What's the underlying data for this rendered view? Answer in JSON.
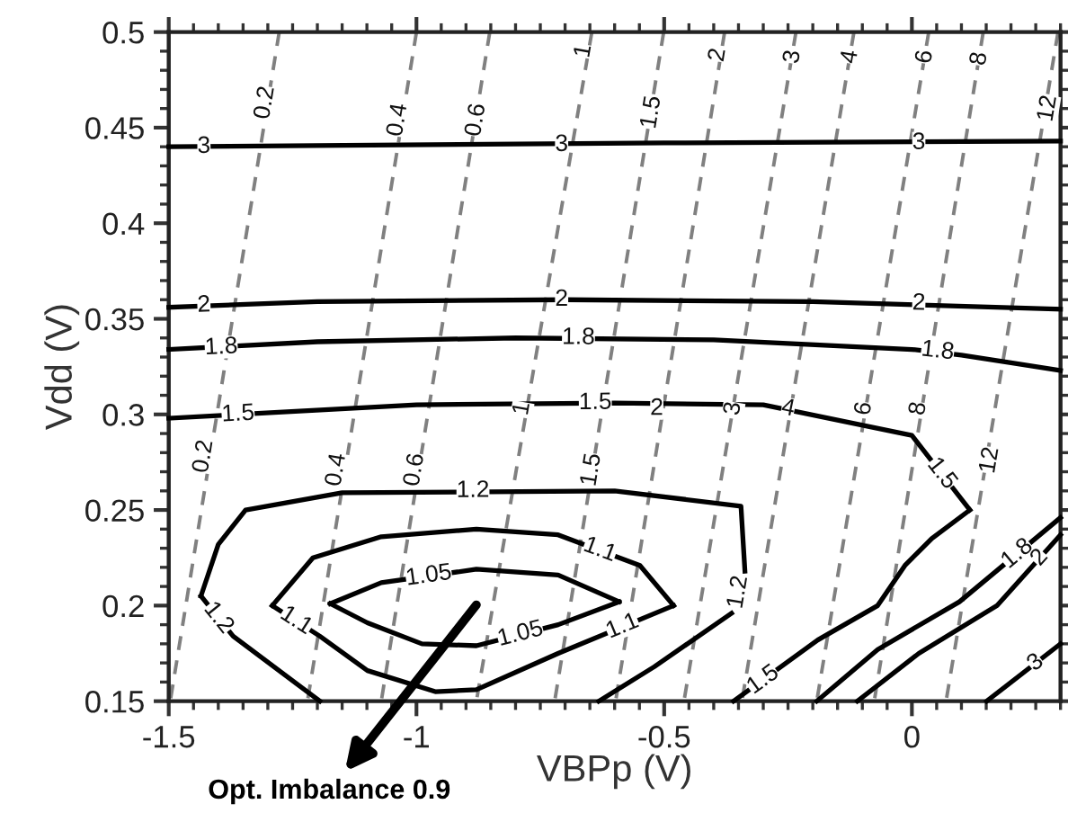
{
  "chart_data": {
    "type": "line",
    "xlabel": "VBPp (V)",
    "ylabel": "Vdd (V)",
    "xlim": [
      -1.5,
      0.3
    ],
    "ylim": [
      0.15,
      0.5
    ],
    "xticks": [
      -1.5,
      -1,
      -0.5,
      0
    ],
    "yticks": [
      0.15,
      0.2,
      0.25,
      0.3,
      0.35,
      0.4,
      0.45,
      0.5
    ],
    "grid": false,
    "legend": false,
    "marker": "none",
    "series": [
      {
        "color": "#000000",
        "line_style": "solid",
        "x": [
          -1.5,
          -0.5,
          0.3
        ],
        "values": [
          0.44,
          0.442,
          0.443
        ]
      },
      {
        "color": "#000000",
        "line_style": "solid",
        "x": [
          -1.5,
          -1.2,
          -0.7,
          -0.2,
          0.3
        ],
        "values": [
          0.356,
          0.359,
          0.36,
          0.359,
          0.355
        ]
      },
      {
        "color": "#000000",
        "line_style": "solid",
        "x": [
          -1.5,
          -1.2,
          -0.8,
          -0.4,
          0.0,
          0.1,
          0.2,
          0.3
        ],
        "values": [
          0.334,
          0.338,
          0.34,
          0.339,
          0.334,
          0.331,
          0.327,
          0.323
        ]
      },
      {
        "color": "#000000",
        "line_style": "solid",
        "x": [
          -1.5,
          -1.0,
          -0.6,
          -0.3,
          0.0,
          0.117
        ],
        "values": [
          0.298,
          0.305,
          0.306,
          0.305,
          0.289,
          0.25
        ]
      },
      {
        "color": "#000000",
        "line_style": "solid",
        "x": [
          -0.36,
          -0.19,
          -0.069,
          -0.014,
          0.04,
          0.117
        ],
        "values": [
          0.15,
          0.182,
          0.2,
          0.221,
          0.235,
          0.25
        ]
      },
      {
        "color": "#000000",
        "line_style": "solid",
        "x": [
          -1.435,
          -1.37,
          -1.195
        ],
        "values": [
          0.205,
          0.184,
          0.15
        ]
      },
      {
        "color": "#000000",
        "line_style": "solid",
        "x": [
          -1.435,
          -1.4,
          -1.345,
          -1.15,
          -0.6,
          -0.345,
          -0.337
        ],
        "values": [
          0.205,
          0.232,
          0.25,
          0.259,
          0.26,
          0.252,
          0.218
        ]
      },
      {
        "color": "#000000",
        "line_style": "solid",
        "x": [
          -0.632,
          -0.52,
          -0.364
        ],
        "values": [
          0.15,
          0.168,
          0.196
        ]
      },
      {
        "color": "#000000",
        "line_style": "solid",
        "x": [
          -1.291,
          -1.209,
          -1.071,
          -0.879,
          -0.714,
          -0.549,
          -0.481
        ],
        "values": [
          0.2,
          0.225,
          0.236,
          0.24,
          0.237,
          0.221,
          0.2
        ]
      },
      {
        "color": "#000000",
        "line_style": "solid",
        "x": [
          -1.291,
          -1.195,
          -1.099,
          -0.962,
          -0.879,
          -0.714,
          -0.481
        ],
        "values": [
          0.2,
          0.184,
          0.166,
          0.155,
          0.156,
          0.175,
          0.2
        ]
      },
      {
        "color": "#000000",
        "line_style": "solid",
        "x": [
          -1.174,
          -1.071,
          -0.879,
          -0.714,
          -0.591
        ],
        "values": [
          0.201,
          0.212,
          0.219,
          0.216,
          0.202
        ]
      },
      {
        "color": "#000000",
        "line_style": "solid",
        "x": [
          -1.174,
          -1.099,
          -0.989,
          -0.879,
          -0.714,
          -0.591
        ],
        "values": [
          0.201,
          0.191,
          0.18,
          0.179,
          0.19,
          0.202
        ]
      },
      {
        "color": "#000000",
        "line_style": "solid",
        "x": [
          -0.192,
          -0.069,
          0.096,
          0.3
        ],
        "values": [
          0.15,
          0.177,
          0.202,
          0.246
        ]
      },
      {
        "color": "#000000",
        "line_style": "solid",
        "x": [
          -0.11,
          0.014,
          0.172,
          0.3
        ],
        "values": [
          0.15,
          0.175,
          0.2,
          0.237
        ]
      },
      {
        "color": "#000000",
        "line_style": "solid",
        "x": [
          0.151,
          0.3
        ],
        "values": [
          0.15,
          0.18
        ]
      },
      {
        "color": "#808080",
        "line_style": "dashed",
        "x": [
          -1.277,
          -1.497
        ],
        "values": [
          0.5,
          0.15
        ]
      },
      {
        "color": "#808080",
        "line_style": "dashed",
        "x": [
          -1.0,
          -1.22
        ],
        "values": [
          0.5,
          0.15
        ]
      },
      {
        "color": "#808080",
        "line_style": "dashed",
        "x": [
          -0.852,
          -1.071
        ],
        "values": [
          0.5,
          0.15
        ]
      },
      {
        "color": "#808080",
        "line_style": "dashed",
        "x": [
          -0.646,
          -0.879
        ],
        "values": [
          0.5,
          0.15
        ]
      },
      {
        "color": "#808080",
        "line_style": "dashed",
        "x": [
          -0.501,
          -0.721
        ],
        "values": [
          0.5,
          0.15
        ]
      },
      {
        "color": "#808080",
        "line_style": "dashed",
        "x": [
          -0.378,
          -0.598
        ],
        "values": [
          0.5,
          0.15
        ]
      },
      {
        "color": "#808080",
        "line_style": "dashed",
        "x": [
          -0.234,
          -0.46
        ],
        "values": [
          0.5,
          0.15
        ]
      },
      {
        "color": "#808080",
        "line_style": "dashed",
        "x": [
          -0.117,
          -0.343
        ],
        "values": [
          0.5,
          0.15
        ]
      },
      {
        "color": "#808080",
        "line_style": "dashed",
        "x": [
          0.034,
          -0.192
        ],
        "values": [
          0.5,
          0.15
        ]
      },
      {
        "color": "#808080",
        "line_style": "dashed",
        "x": [
          0.144,
          -0.076
        ],
        "values": [
          0.5,
          0.15
        ]
      },
      {
        "color": "#808080",
        "line_style": "dashed",
        "x": [
          0.295,
          0.069
        ],
        "values": [
          0.5,
          0.15
        ]
      }
    ],
    "annotations": [
      {
        "text": "3",
        "x": -1.429,
        "y": 0.44
      },
      {
        "text": "3",
        "x": -0.707,
        "y": 0.441
      },
      {
        "text": "3",
        "x": 0.014,
        "y": 0.442
      },
      {
        "text": "2",
        "x": -1.429,
        "y": 0.357
      },
      {
        "text": "2",
        "x": -0.707,
        "y": 0.36
      },
      {
        "text": "2",
        "x": 0.014,
        "y": 0.358
      },
      {
        "text": "1.8",
        "x": -1.394,
        "y": 0.335
      },
      {
        "text": "1.8",
        "x": -0.673,
        "y": 0.34
      },
      {
        "text": "1.8",
        "x": 0.052,
        "y": 0.333
      },
      {
        "text": "1.5",
        "x": -1.36,
        "y": 0.3
      },
      {
        "text": "1.5",
        "x": -0.639,
        "y": 0.306
      },
      {
        "text": "1.5",
        "x": 0.06,
        "y": 0.269
      },
      {
        "text": "1.5",
        "x": -0.3,
        "y": 0.161
      },
      {
        "text": "1.2",
        "x": -0.886,
        "y": 0.26
      },
      {
        "text": "1.2",
        "x": -1.4,
        "y": 0.1935
      },
      {
        "text": "1.2",
        "x": -0.35,
        "y": 0.207
      },
      {
        "text": "1.1",
        "x": -0.63,
        "y": 0.229
      },
      {
        "text": "1.1",
        "x": -1.243,
        "y": 0.192
      },
      {
        "text": "1.1",
        "x": -0.584,
        "y": 0.189
      },
      {
        "text": "1.05",
        "x": -0.975,
        "y": 0.2155
      },
      {
        "text": "1.05",
        "x": -0.79,
        "y": 0.185
      },
      {
        "text": "1.8",
        "x": 0.213,
        "y": 0.227
      },
      {
        "text": "2",
        "x": 0.258,
        "y": 0.225
      },
      {
        "text": "3",
        "x": 0.25,
        "y": 0.17
      },
      {
        "text": "0.2",
        "x": -1.305,
        "y": 0.463
      },
      {
        "text": "0.2",
        "x": -1.429,
        "y": 0.278
      },
      {
        "text": "0.4",
        "x": -1.037,
        "y": 0.454
      },
      {
        "text": "0.4",
        "x": -1.161,
        "y": 0.271
      },
      {
        "text": "0.6",
        "x": -0.879,
        "y": 0.454
      },
      {
        "text": "0.6",
        "x": -1.003,
        "y": 0.271
      },
      {
        "text": "1",
        "x": -0.662,
        "y": 0.49
      },
      {
        "text": "1",
        "x": -0.786,
        "y": 0.303
      },
      {
        "text": "1.5",
        "x": -0.525,
        "y": 0.458
      },
      {
        "text": "1.5",
        "x": -0.646,
        "y": 0.271
      },
      {
        "text": "2",
        "x": -0.391,
        "y": 0.488
      },
      {
        "text": "2",
        "x": -0.515,
        "y": 0.303
      },
      {
        "text": "3",
        "x": -0.24,
        "y": 0.487
      },
      {
        "text": "3",
        "x": -0.36,
        "y": 0.303
      },
      {
        "text": "4",
        "x": -0.124,
        "y": 0.487
      },
      {
        "text": "4",
        "x": -0.25,
        "y": 0.303
      },
      {
        "text": "6",
        "x": 0.027,
        "y": 0.487
      },
      {
        "text": "6",
        "x": -0.096,
        "y": 0.303
      },
      {
        "text": "8",
        "x": 0.137,
        "y": 0.486
      },
      {
        "text": "8",
        "x": 0.014,
        "y": 0.303
      },
      {
        "text": "12",
        "x": 0.275,
        "y": 0.46
      },
      {
        "text": "12",
        "x": 0.158,
        "y": 0.276
      },
      "Opt. Imbalance 0.9"
    ]
  }
}
